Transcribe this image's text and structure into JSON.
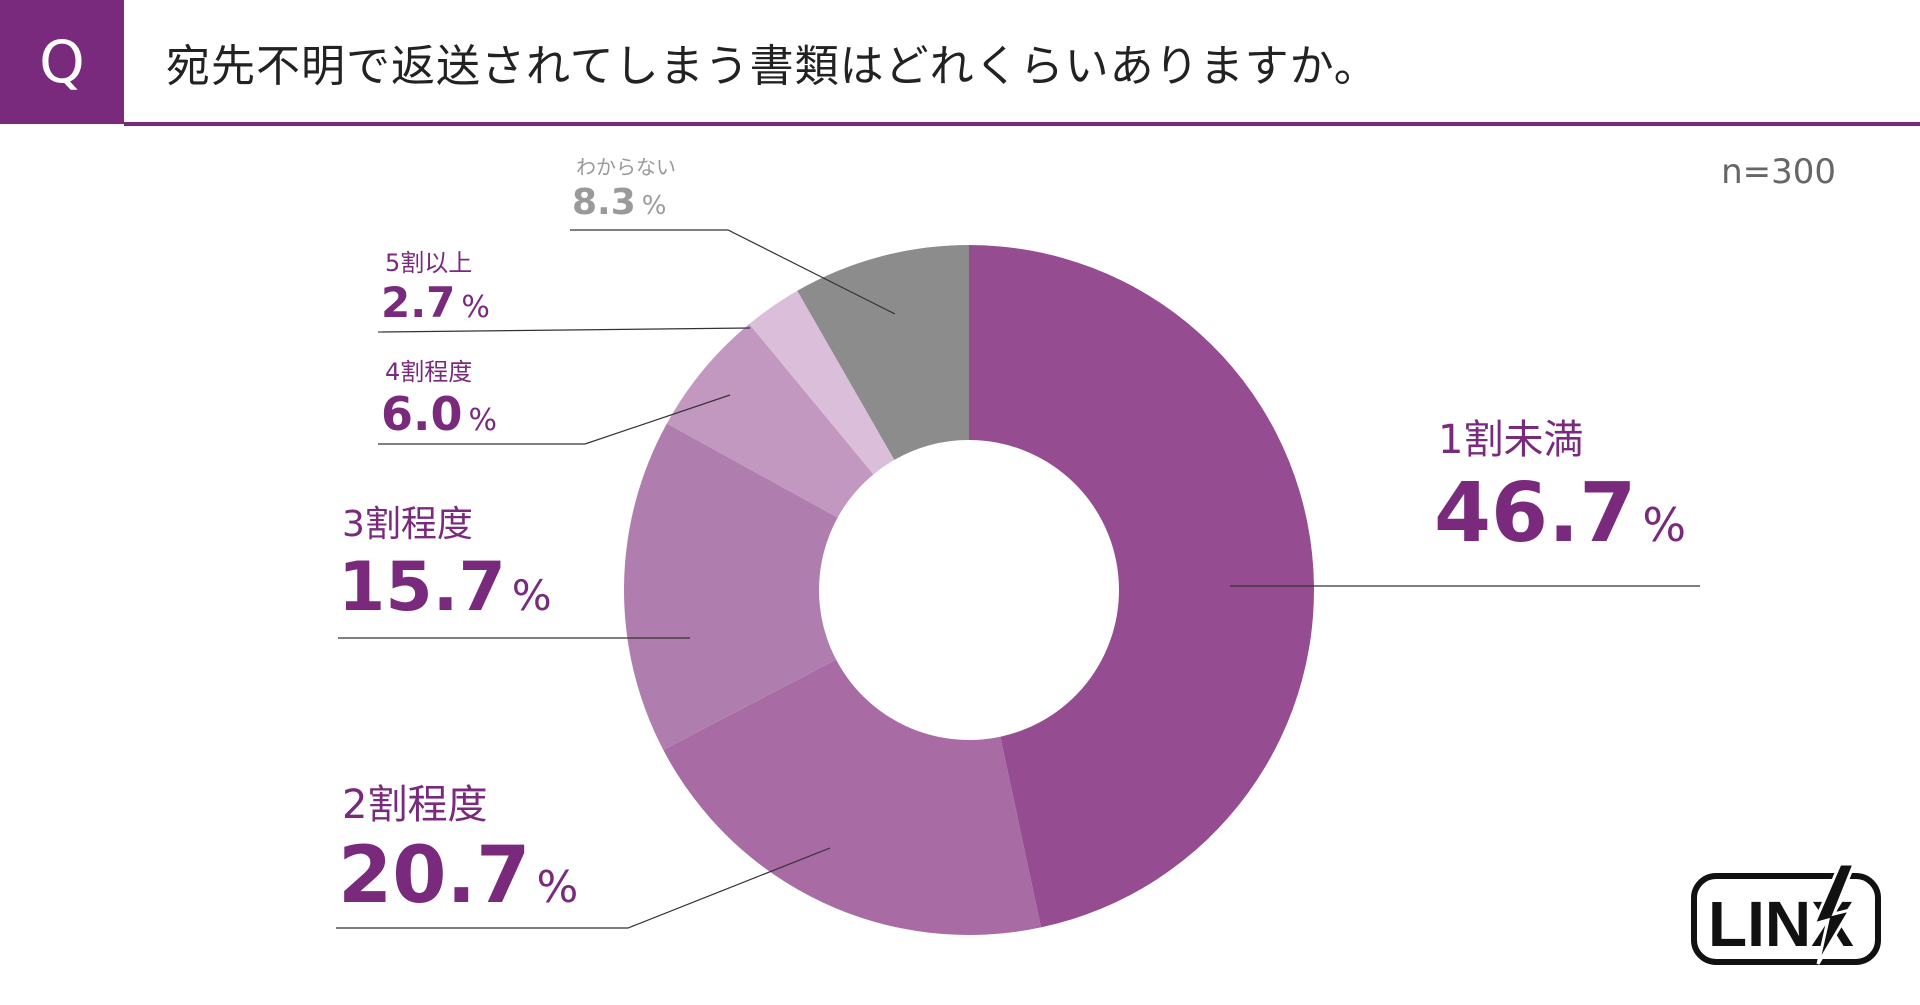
{
  "header": {
    "q_label": "Q",
    "title": "宛先不明で返送されてしまう書類はどれくらいありますか。"
  },
  "sample_size": "n=300",
  "logo_text": "LINX",
  "colors": {
    "accent": "#7a2a7c",
    "gray": "#8c8c8c"
  },
  "chart_data": {
    "type": "pie",
    "variant": "donut",
    "title": "宛先不明で返送されてしまう書類はどれくらいありますか。",
    "unit": "%",
    "slices": [
      {
        "label": "1割未満",
        "value": 46.7,
        "color": "#954c91",
        "label_color": "#7a2a7c"
      },
      {
        "label": "2割程度",
        "value": 20.7,
        "color": "#a86ba4",
        "label_color": "#7a2a7c"
      },
      {
        "label": "3割程度",
        "value": 15.7,
        "color": "#b07eae",
        "label_color": "#7a2a7c"
      },
      {
        "label": "4割程度",
        "value": 6.0,
        "color": "#c297c0",
        "label_color": "#7a2a7c"
      },
      {
        "label": "5割以上",
        "value": 2.7,
        "color": "#dbbfda",
        "label_color": "#7a2a7c"
      },
      {
        "label": "わからない",
        "value": 8.3,
        "color": "#8c8c8c",
        "label_color": "#9a9a9a"
      }
    ]
  }
}
